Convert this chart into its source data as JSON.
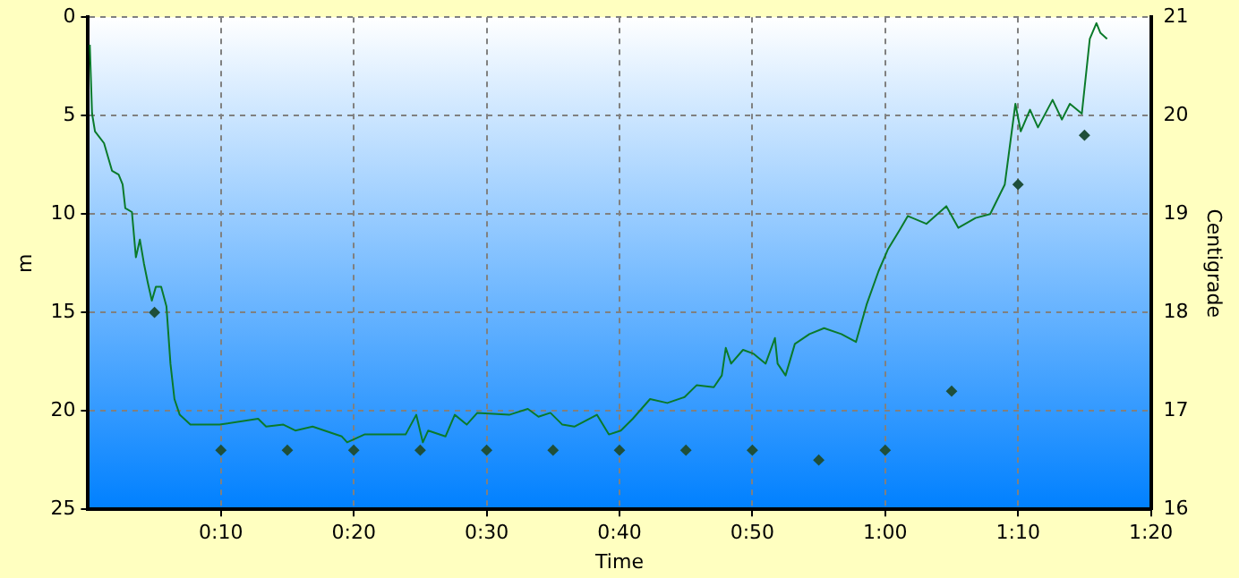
{
  "chart_data": {
    "type": "line",
    "xlabel": "Time",
    "ylabel": "m",
    "y2label": "Centigrade",
    "xlim": [
      0,
      80
    ],
    "xticks": [
      {
        "value": 10,
        "label": "0:10"
      },
      {
        "value": 20,
        "label": "0:20"
      },
      {
        "value": 30,
        "label": "0:30"
      },
      {
        "value": 40,
        "label": "0:40"
      },
      {
        "value": 50,
        "label": "0:50"
      },
      {
        "value": 60,
        "label": "1:00"
      },
      {
        "value": 70,
        "label": "1:10"
      },
      {
        "value": 80,
        "label": "1:20"
      }
    ],
    "ylim": [
      25,
      0
    ],
    "yticks": [
      0,
      5,
      10,
      15,
      20,
      25
    ],
    "y2lim": [
      16,
      21
    ],
    "y2ticks": [
      16,
      17,
      18,
      19,
      20,
      21
    ],
    "grid": true,
    "legend": false,
    "series": [
      {
        "axis": "y",
        "color": "#0a7a2a",
        "marker": "none",
        "line_style": "solid",
        "x": [
          0.13,
          0.3,
          0.52,
          1.2,
          1.8,
          2.3,
          2.6,
          2.8,
          3.3,
          3.6,
          3.9,
          4.2,
          4.5,
          4.8,
          5.1,
          5.5,
          5.9,
          6.2,
          6.5,
          6.9,
          7.7,
          9.9,
          12.8,
          13.4,
          14.7,
          15.6,
          16.9,
          19.1,
          19.5,
          20.8,
          23.9,
          24.7,
          25.2,
          25.6,
          26.9,
          27.6,
          28.5,
          29.3,
          31.7,
          33.1,
          33.9,
          34.8,
          35.7,
          36.6,
          38.3,
          39.2,
          40.1,
          41,
          42.3,
          43.6,
          44.9,
          45.8,
          47.1,
          47.7,
          48.0,
          48.4,
          49.3,
          50.1,
          51.0,
          51.7,
          51.9,
          52.5,
          53.2,
          54.3,
          55.4,
          56.7,
          57.8,
          58.6,
          59.5,
          60.2,
          61.1,
          61.7,
          63.1,
          64.6,
          65.5,
          66.8,
          67.9,
          69.0,
          69.8,
          70.2,
          70.9,
          71.5,
          72.6,
          73.3,
          73.9,
          74.8,
          75.4,
          75.9,
          76.2,
          76.7
        ],
        "values": [
          1.4,
          4.9,
          5.8,
          6.4,
          7.8,
          8.0,
          8.5,
          9.7,
          9.9,
          12.2,
          11.3,
          12.5,
          13.5,
          14.4,
          13.7,
          13.7,
          14.7,
          17.6,
          19.4,
          20.2,
          20.7,
          20.7,
          20.4,
          20.8,
          20.7,
          21.0,
          20.8,
          21.3,
          21.6,
          21.2,
          21.2,
          20.2,
          21.6,
          21.0,
          21.3,
          20.2,
          20.7,
          20.1,
          20.2,
          19.9,
          20.3,
          20.1,
          20.7,
          20.8,
          20.2,
          21.2,
          21.0,
          20.4,
          19.4,
          19.6,
          19.3,
          18.7,
          18.8,
          18.2,
          16.8,
          17.6,
          16.9,
          17.1,
          17.6,
          16.3,
          17.6,
          18.2,
          16.6,
          16.1,
          15.8,
          16.1,
          16.5,
          14.6,
          12.9,
          11.8,
          10.8,
          10.1,
          10.5,
          9.6,
          10.7,
          10.2,
          10.0,
          8.5,
          4.4,
          5.8,
          4.7,
          5.6,
          4.2,
          5.2,
          4.4,
          4.9,
          1.1,
          0.3,
          0.8,
          1.1
        ]
      },
      {
        "type": "scatter",
        "axis": "y2",
        "color": "#1f4f3a",
        "marker": "diamond",
        "x": [
          5,
          10,
          15,
          20,
          25,
          30,
          35,
          40,
          45,
          50,
          55,
          60,
          65,
          70,
          75
        ],
        "values": [
          18.0,
          16.6,
          16.6,
          16.6,
          16.6,
          16.6,
          16.6,
          16.6,
          16.6,
          16.6,
          16.5,
          16.6,
          17.2,
          19.3,
          19.8
        ]
      }
    ]
  }
}
